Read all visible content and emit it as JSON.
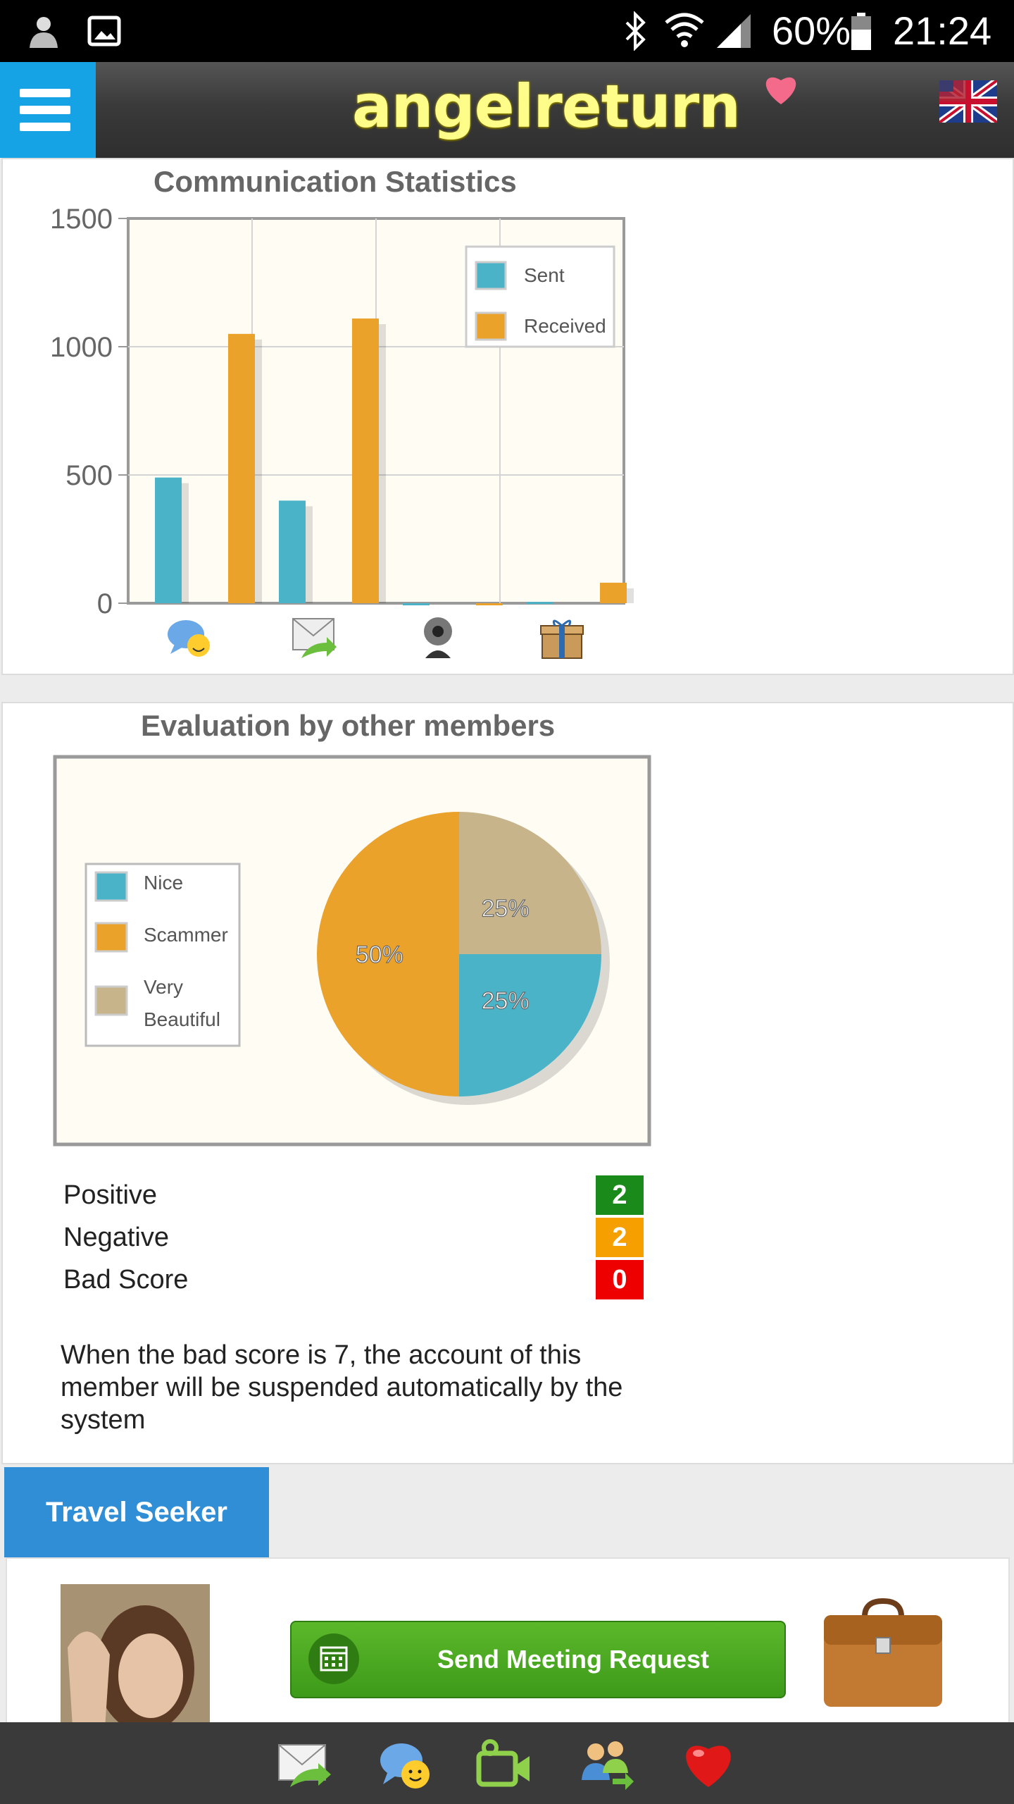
{
  "status_bar": {
    "battery": "60%",
    "time": "21:24"
  },
  "header": {
    "logo": "angelreturn"
  },
  "stats_card": {
    "title": "Communication Statistics",
    "chart_data": {
      "type": "bar",
      "categories": [
        "chat-icon",
        "mail-icon",
        "webcam-icon",
        "gift-icon"
      ],
      "series": [
        {
          "name": "Sent",
          "color": "#4ab3c8",
          "values": [
            490,
            400,
            0,
            5
          ]
        },
        {
          "name": "Received",
          "color": "#eaa22b",
          "values": [
            1050,
            1110,
            0,
            80
          ]
        }
      ],
      "ylim": [
        0,
        1500
      ],
      "yticks": [
        "1500",
        "1000",
        "500",
        "0"
      ],
      "legend": "top-right",
      "grid": true
    }
  },
  "eval_card": {
    "title": "Evaluation by other members",
    "chart_data": {
      "type": "pie",
      "slices": [
        {
          "name": "Nice",
          "value": 25,
          "label": "25%",
          "color": "#4ab3c8"
        },
        {
          "name": "Scammer",
          "value": 50,
          "label": "50%",
          "color": "#eaa22b"
        },
        {
          "name": "Very Beautiful",
          "value": 25,
          "label": "25%",
          "color": "#c8b48a"
        }
      ],
      "legend_lines": {
        "nice": "Nice",
        "scammer": "Scammer",
        "very": "Very",
        "beautiful": "Beautiful"
      },
      "legend": "left"
    },
    "rows": [
      {
        "label": "Positive",
        "value": "2",
        "color": "#1a8a1a"
      },
      {
        "label": "Negative",
        "value": "2",
        "color": "#f5a000"
      },
      {
        "label": "Bad Score",
        "value": "0",
        "color": "#ee0000"
      }
    ],
    "note": "When the bad score is 7, the account of this member will be suspended automatically by the system"
  },
  "travel": {
    "tab_label": "Travel Seeker",
    "button_label": "Send Meeting Request"
  },
  "bottom_bar": {
    "icons": [
      "mail-icon",
      "chat-icon",
      "video-icon",
      "contacts-icon",
      "heart-icon"
    ]
  }
}
